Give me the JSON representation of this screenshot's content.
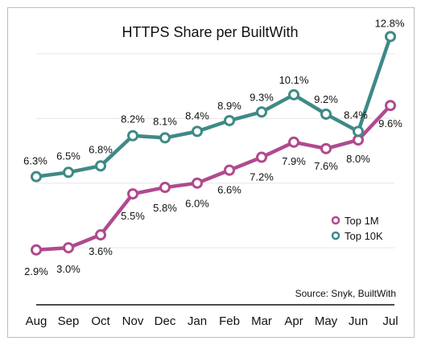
{
  "chart_data": {
    "type": "line",
    "title": "HTTPS Share per BuiltWith",
    "categories": [
      "Aug",
      "Sep",
      "Oct",
      "Nov",
      "Dec",
      "Jan",
      "Feb",
      "Mar",
      "Apr",
      "May",
      "Jun",
      "Jul"
    ],
    "series": [
      {
        "name": "Top 1M",
        "color": "#b04a8f",
        "values": [
          2.9,
          3.0,
          3.6,
          5.5,
          5.8,
          6.0,
          6.6,
          7.2,
          7.9,
          7.6,
          8.0,
          9.6
        ],
        "labels": [
          "2.9%",
          "3.0%",
          "3.6%",
          "5.5%",
          "5.8%",
          "6.0%",
          "6.6%",
          "7.2%",
          "7.9%",
          "7.6%",
          "8.0%",
          "9.6%"
        ]
      },
      {
        "name": "Top 10K",
        "color": "#3e8a86",
        "values": [
          6.3,
          6.5,
          6.8,
          8.2,
          8.1,
          8.4,
          8.9,
          9.3,
          10.1,
          9.2,
          8.4,
          12.8
        ],
        "labels": [
          "6.3%",
          "6.5%",
          "6.8%",
          "8.2%",
          "8.1%",
          "8.4%",
          "8.9%",
          "9.3%",
          "10.1%",
          "9.2%",
          "8.4%",
          "12.8%"
        ]
      }
    ],
    "ylim": [
      0,
      14
    ],
    "grid": true,
    "legend_position": "right",
    "source_note": "Source: Snyk, BuiltWith"
  }
}
